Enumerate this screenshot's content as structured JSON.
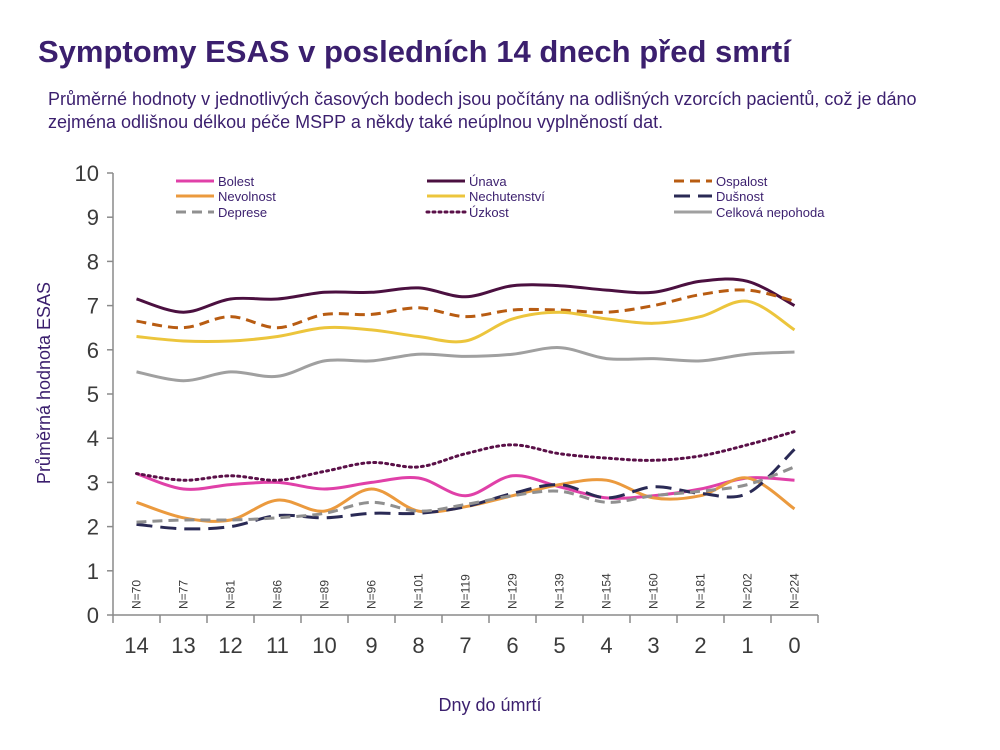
{
  "header": {
    "title": "Symptomy ESAS v posledních 14 dnech před smrtí",
    "subtitle": "Průměrné hodnoty v jednotlivých časových bodech jsou počítány na odlišných vzorcích pacientů, což je dáno zejména odlišnou délkou péče MSPP a někdy také neúplnou vyplněností dat."
  },
  "chart_data": {
    "type": "line",
    "xlabel": "Dny do úmrtí",
    "ylabel": "Průměrná hodnota ESAS",
    "ylim": [
      0,
      10
    ],
    "yticks": [
      "0",
      "1",
      "2",
      "3",
      "4",
      "5",
      "6",
      "7",
      "8",
      "9",
      "10"
    ],
    "categories": [
      "14",
      "13",
      "12",
      "11",
      "10",
      "9",
      "8",
      "7",
      "6",
      "5",
      "4",
      "3",
      "2",
      "1",
      "0"
    ],
    "sample_sizes": [
      "N=70",
      "N=77",
      "N=81",
      "N=86",
      "N=89",
      "N=96",
      "N=101",
      "N=119",
      "N=129",
      "N=139",
      "N=154",
      "N=160",
      "N=181",
      "N=202",
      "N=224"
    ],
    "grid": false,
    "legend_position": "top",
    "series": [
      {
        "name": "Bolest",
        "color": "#e040a8",
        "dash": "solid",
        "values": [
          3.2,
          2.85,
          2.95,
          3.0,
          2.85,
          3.0,
          3.1,
          2.7,
          3.15,
          2.9,
          2.65,
          2.7,
          2.85,
          3.1,
          3.05
        ]
      },
      {
        "name": "Únava",
        "color": "#4b1040",
        "dash": "solid",
        "values": [
          7.15,
          6.85,
          7.15,
          7.15,
          7.3,
          7.3,
          7.4,
          7.2,
          7.45,
          7.45,
          7.35,
          7.3,
          7.55,
          7.55,
          7.0
        ]
      },
      {
        "name": "Ospalost",
        "color": "#b85c12",
        "dash": "dashed",
        "values": [
          6.65,
          6.5,
          6.75,
          6.5,
          6.8,
          6.8,
          6.95,
          6.75,
          6.9,
          6.9,
          6.85,
          7.0,
          7.25,
          7.35,
          7.1
        ]
      },
      {
        "name": "Nevolnost",
        "color": "#eb9a3e",
        "dash": "solid",
        "values": [
          2.55,
          2.2,
          2.15,
          2.6,
          2.35,
          2.85,
          2.35,
          2.45,
          2.7,
          2.95,
          3.05,
          2.65,
          2.7,
          3.1,
          2.4
        ]
      },
      {
        "name": "Nechutenství",
        "color": "#ecc53c",
        "dash": "solid",
        "values": [
          6.3,
          6.2,
          6.2,
          6.3,
          6.5,
          6.45,
          6.3,
          6.2,
          6.7,
          6.85,
          6.7,
          6.6,
          6.75,
          7.1,
          6.45
        ]
      },
      {
        "name": "Dušnost",
        "color": "#2a2a55",
        "dash": "longdash",
        "values": [
          2.05,
          1.95,
          2.0,
          2.25,
          2.2,
          2.3,
          2.3,
          2.45,
          2.75,
          2.95,
          2.65,
          2.9,
          2.75,
          2.75,
          3.75
        ]
      },
      {
        "name": "Deprese",
        "color": "#909090",
        "dash": "dashed",
        "values": [
          2.1,
          2.15,
          2.15,
          2.2,
          2.3,
          2.55,
          2.35,
          2.5,
          2.7,
          2.8,
          2.55,
          2.7,
          2.8,
          2.95,
          3.35
        ]
      },
      {
        "name": "Úzkost",
        "color": "#5a1048",
        "dash": "dotted",
        "values": [
          3.2,
          3.05,
          3.15,
          3.05,
          3.25,
          3.45,
          3.35,
          3.65,
          3.85,
          3.65,
          3.55,
          3.5,
          3.6,
          3.85,
          4.15
        ]
      },
      {
        "name": "Celková nepohoda",
        "color": "#a0a0a0",
        "dash": "solid",
        "values": [
          5.5,
          5.3,
          5.5,
          5.4,
          5.75,
          5.75,
          5.9,
          5.85,
          5.9,
          6.05,
          5.8,
          5.8,
          5.75,
          5.9,
          5.95
        ]
      }
    ]
  }
}
